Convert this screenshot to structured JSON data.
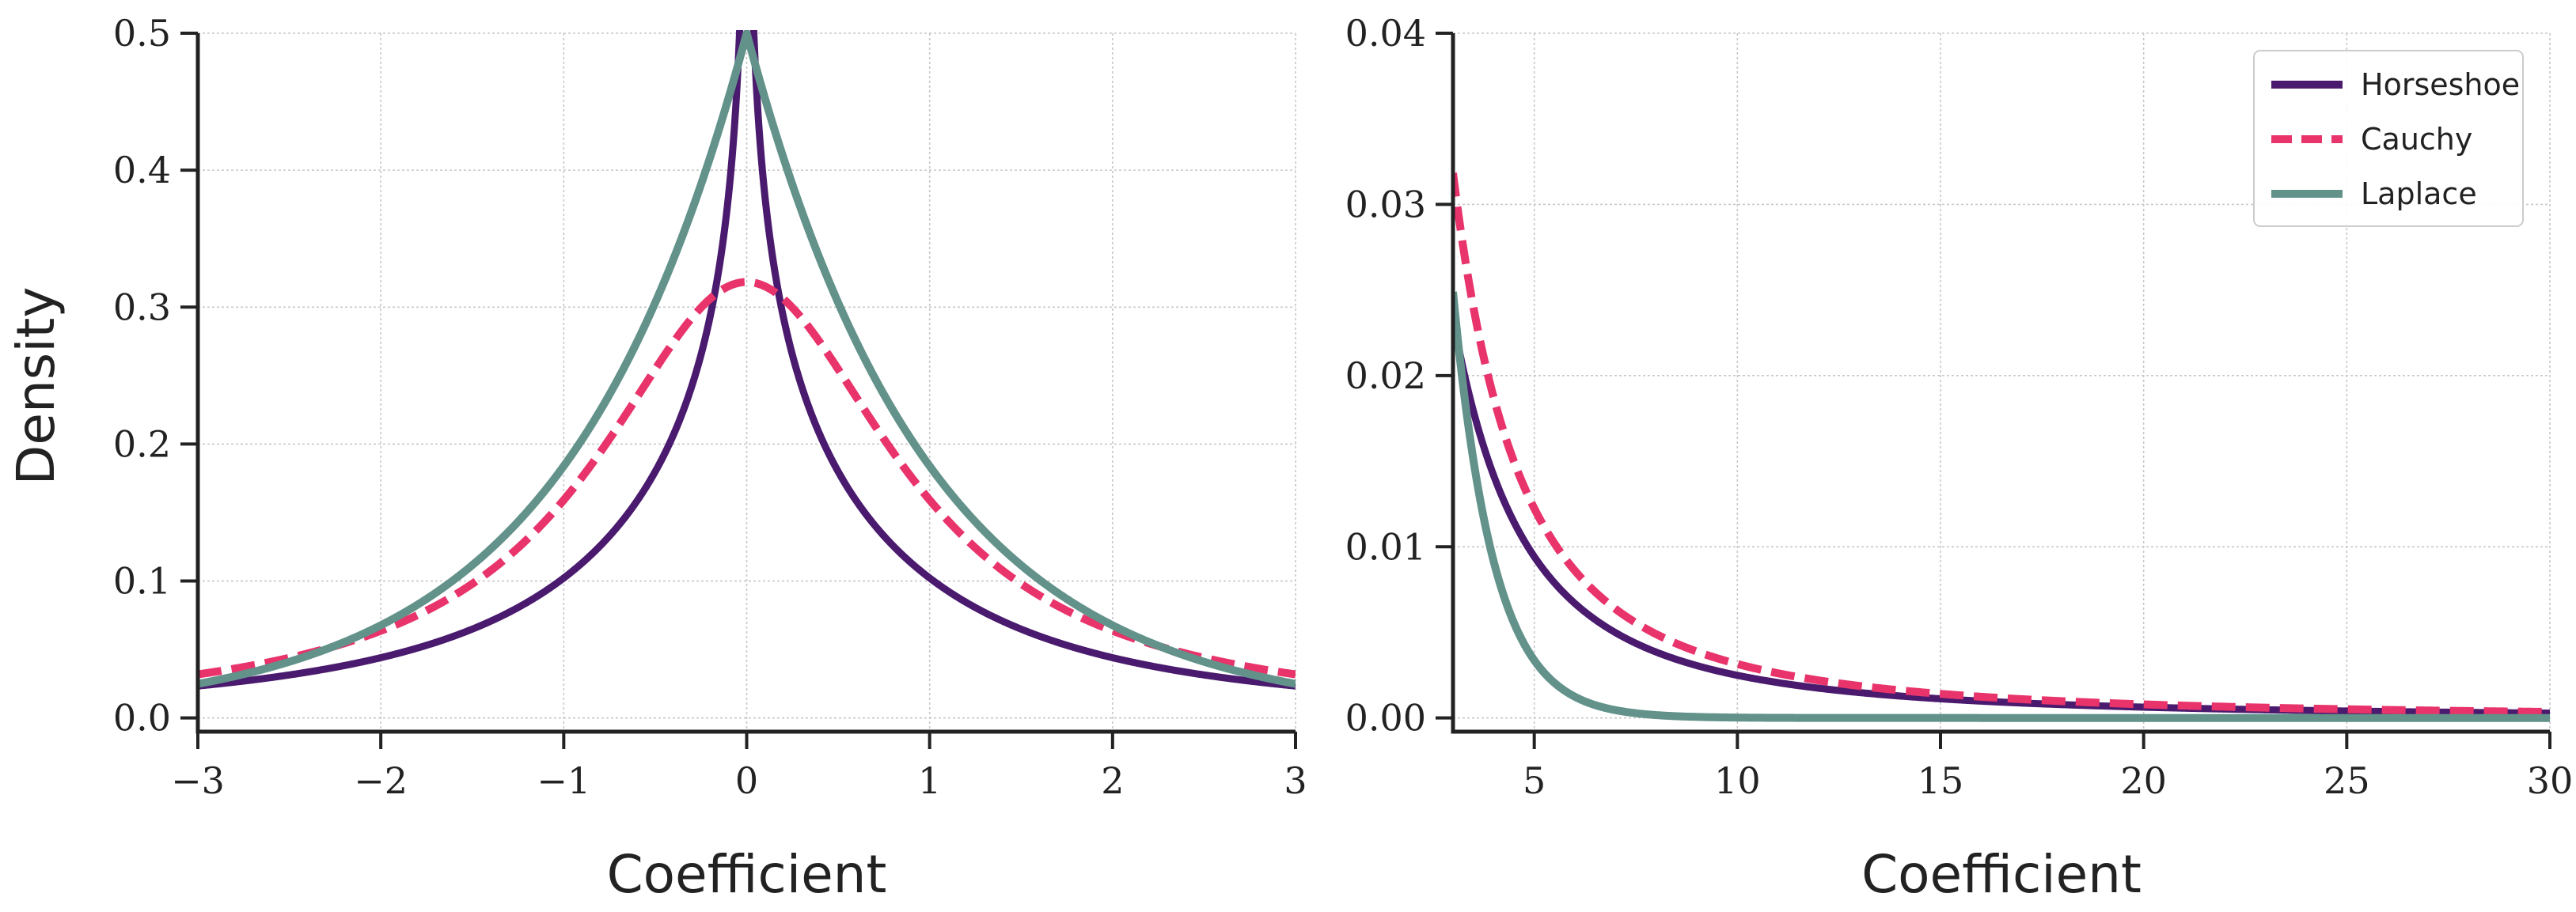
{
  "chart_data": [
    {
      "type": "line",
      "xlabel": "Coefficient",
      "ylabel": "Density",
      "xlim": [
        -3,
        3
      ],
      "ylim": [
        -0.01,
        0.5
      ],
      "grid": true,
      "xticks": [
        -3,
        -2,
        -1,
        0,
        1,
        2,
        3
      ],
      "xtick_labels": [
        "−3",
        "−2",
        "−1",
        "0",
        "1",
        "2",
        "3"
      ],
      "yticks": [
        0.0,
        0.1,
        0.2,
        0.3,
        0.4,
        0.5
      ],
      "ytick_labels": [
        "0.0",
        "0.1",
        "0.2",
        "0.3",
        "0.4",
        "0.5"
      ],
      "series": [
        {
          "name": "Horseshoe",
          "color": "#4a1a6e",
          "style": "solid",
          "distribution": "horseshoe",
          "scale": 1,
          "x": [
            -3,
            -2,
            -1,
            -0.5,
            -0.25,
            -0.1,
            0,
            0.1,
            0.25,
            0.5,
            1,
            2,
            3
          ],
          "y": [
            0.022,
            0.044,
            0.11,
            0.21,
            0.31,
            0.45,
            0.5,
            0.45,
            0.31,
            0.21,
            0.11,
            0.044,
            0.022
          ]
        },
        {
          "name": "Cauchy",
          "color": "#e8336b",
          "style": "dashed",
          "distribution": "cauchy",
          "scale": 1,
          "x": [
            -3,
            -2,
            -1,
            0,
            1,
            2,
            3
          ],
          "y": [
            0.032,
            0.064,
            0.159,
            0.318,
            0.159,
            0.064,
            0.032
          ]
        },
        {
          "name": "Laplace",
          "color": "#62928a",
          "style": "solid",
          "distribution": "laplace",
          "scale": 1,
          "x": [
            -3,
            -2,
            -1,
            0,
            1,
            2,
            3
          ],
          "y": [
            0.025,
            0.068,
            0.184,
            0.5,
            0.184,
            0.068,
            0.025
          ]
        }
      ]
    },
    {
      "type": "line",
      "xlabel": "Coefficient",
      "ylabel": "",
      "xlim": [
        3,
        30
      ],
      "ylim": [
        -0.0008,
        0.04
      ],
      "grid": true,
      "legend": "top-right",
      "xticks": [
        5,
        10,
        15,
        20,
        25,
        30
      ],
      "xtick_labels": [
        "5",
        "10",
        "15",
        "20",
        "25",
        "30"
      ],
      "yticks": [
        0.0,
        0.01,
        0.02,
        0.03,
        0.04
      ],
      "ytick_labels": [
        "0.00",
        "0.01",
        "0.02",
        "0.03",
        "0.04"
      ],
      "series": [
        {
          "name": "Horseshoe",
          "color": "#4a1a6e",
          "style": "solid",
          "distribution": "horseshoe",
          "scale": 1,
          "x": [
            3,
            5,
            10,
            15,
            20,
            30
          ],
          "y": [
            0.022,
            0.0085,
            0.0025,
            0.0012,
            0.0007,
            0.0003
          ]
        },
        {
          "name": "Cauchy",
          "color": "#e8336b",
          "style": "dashed",
          "distribution": "cauchy",
          "scale": 1,
          "x": [
            3,
            5,
            10,
            15,
            20,
            30
          ],
          "y": [
            0.0318,
            0.0122,
            0.0032,
            0.0014,
            0.0008,
            0.00035
          ]
        },
        {
          "name": "Laplace",
          "color": "#62928a",
          "style": "solid",
          "distribution": "laplace",
          "scale": 1,
          "x": [
            3,
            5,
            8,
            10,
            30
          ],
          "y": [
            0.0249,
            0.0034,
            0.0002,
            2e-05,
            0.0
          ]
        }
      ]
    }
  ],
  "legend": {
    "entries": [
      {
        "label": "Horseshoe",
        "color": "#4a1a6e",
        "style": "solid"
      },
      {
        "label": "Cauchy",
        "color": "#e8336b",
        "style": "dashed"
      },
      {
        "label": "Laplace",
        "color": "#62928a",
        "style": "solid"
      }
    ]
  }
}
